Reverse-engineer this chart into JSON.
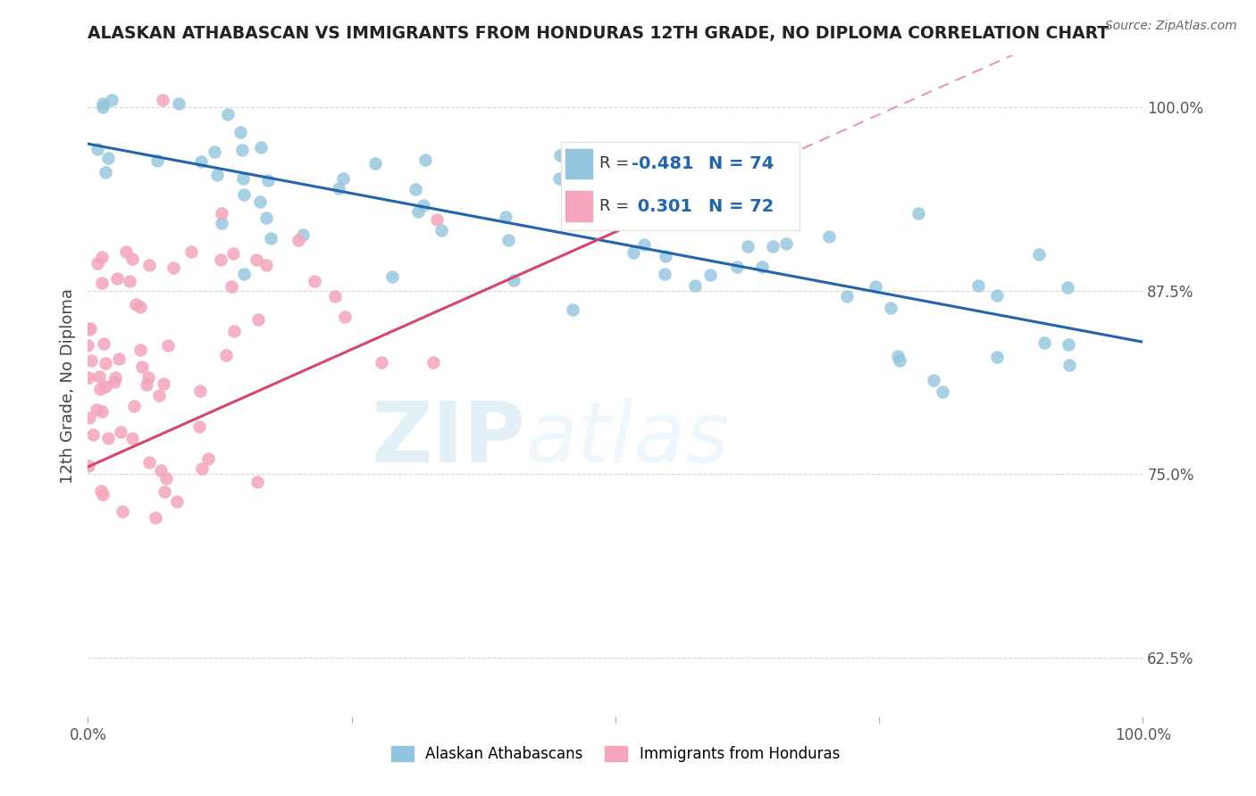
{
  "title": "ALASKAN ATHABASCAN VS IMMIGRANTS FROM HONDURAS 12TH GRADE, NO DIPLOMA CORRELATION CHART",
  "source": "Source: ZipAtlas.com",
  "ylabel": "12th Grade, No Diploma",
  "blue_color": "#92C5DE",
  "pink_color": "#F4A5BB",
  "blue_line_color": "#2166AC",
  "pink_line_color": "#D6456A",
  "legend_r_blue": "-0.481",
  "legend_n_blue": "74",
  "legend_r_pink": "0.301",
  "legend_n_pink": "72",
  "blue_label": "Alaskan Athabascans",
  "pink_label": "Immigrants from Honduras",
  "ylim_min": 0.585,
  "ylim_max": 1.035,
  "xlim_min": 0.0,
  "xlim_max": 1.0,
  "y_ticks": [
    0.625,
    0.75,
    0.875,
    1.0
  ],
  "y_tick_labels": [
    "62.5%",
    "75.0%",
    "87.5%",
    "100.0%"
  ],
  "x_ticks": [
    0.0,
    0.25,
    0.5,
    0.75,
    1.0
  ],
  "x_tick_labels": [
    "0.0%",
    "",
    "",
    "",
    "100.0%"
  ],
  "watermark_zip_color": "#C8DFF0",
  "watermark_atlas_color": "#D0E8F0"
}
